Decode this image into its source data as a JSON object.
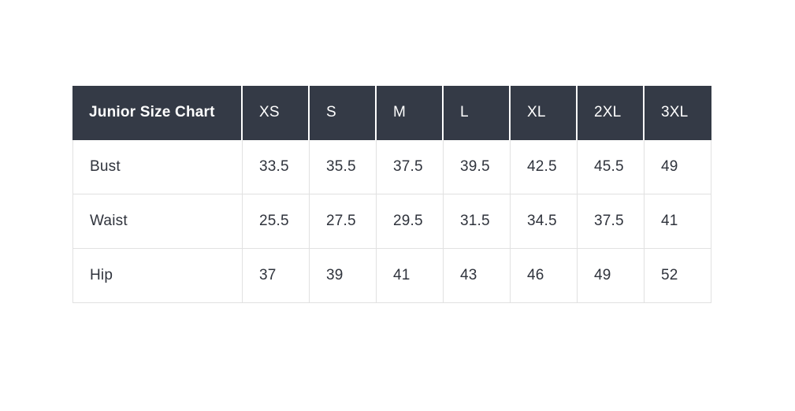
{
  "chart_data": {
    "type": "table",
    "title": "Junior Size Chart",
    "columns": [
      "XS",
      "S",
      "M",
      "L",
      "XL",
      "2XL",
      "3XL"
    ],
    "rows": [
      {
        "label": "Bust",
        "values": [
          "33.5",
          "35.5",
          "37.5",
          "39.5",
          "42.5",
          "45.5",
          "49"
        ]
      },
      {
        "label": "Waist",
        "values": [
          "25.5",
          "27.5",
          "29.5",
          "31.5",
          "34.5",
          "37.5",
          "41"
        ]
      },
      {
        "label": "Hip",
        "values": [
          "37",
          "39",
          "41",
          "43",
          "46",
          "49",
          "52"
        ]
      }
    ]
  },
  "colors": {
    "header_background": "#343a46",
    "header_text": "#ffffff",
    "body_text": "#2f333c",
    "grid_border": "#e1e1e1"
  }
}
